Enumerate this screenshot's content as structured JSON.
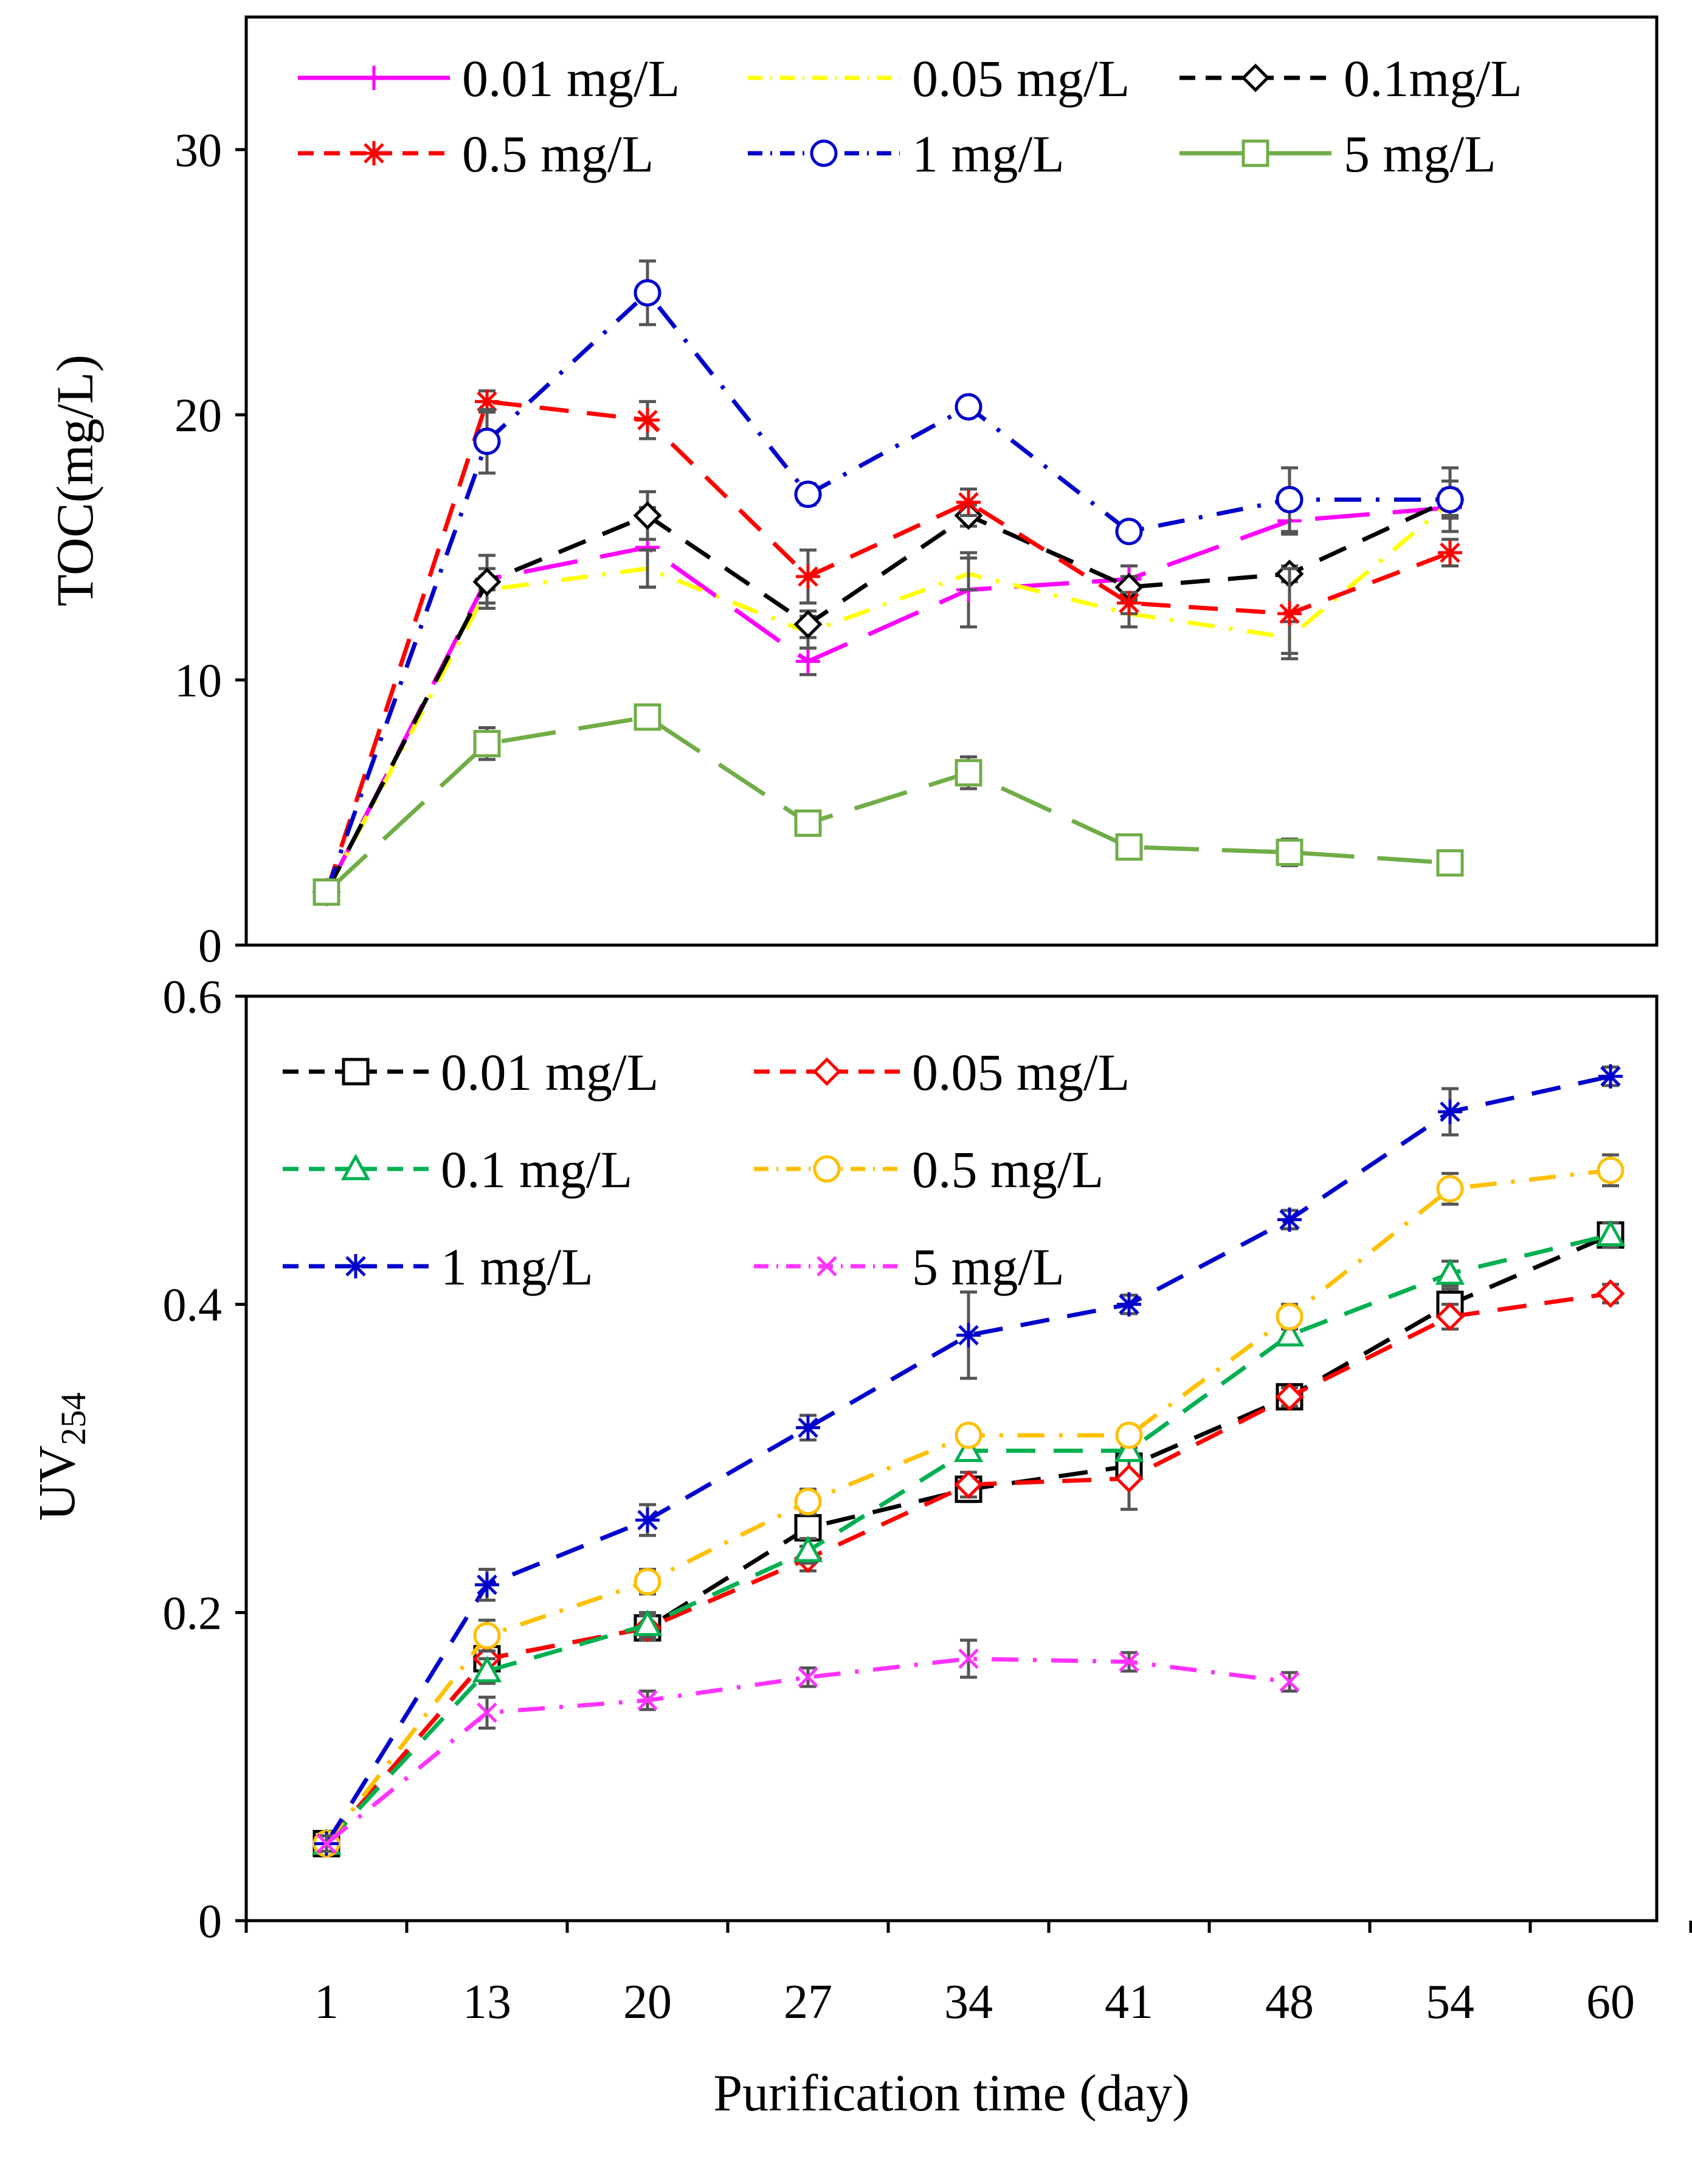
{
  "chart_data": [
    {
      "type": "line",
      "ylabel": "TOC(mg/L)",
      "ylim": [
        0,
        35
      ],
      "yticks": [
        "0",
        "10",
        "20",
        "30"
      ],
      "ytick_values": [
        0,
        10,
        20,
        30
      ],
      "x": [
        "1",
        "13",
        "20",
        "27",
        "34",
        "41",
        "48",
        "54",
        "60"
      ],
      "legend_position": "top",
      "series": [
        {
          "name": "0.01 mg/L",
          "color": "#ff00ff",
          "marker": "plus",
          "dash": "long-dash",
          "values": [
            2.0,
            13.8,
            15.0,
            10.7,
            13.4,
            13.8,
            16.0,
            16.5,
            null
          ],
          "errors": [
            0.2,
            0.4,
            1.5,
            0.5,
            1.4,
            0.5,
            0.5,
            0.4,
            null
          ]
        },
        {
          "name": "0.05 mg/L",
          "color": "#ffff00",
          "marker": "none",
          "dash": "dash-dot",
          "values": [
            2.0,
            13.4,
            14.2,
            11.8,
            14.0,
            12.5,
            11.6,
            16.7,
            null
          ],
          "errors": [
            0.2,
            0.5,
            0.7,
            0.6,
            0.6,
            0.5,
            0.6,
            0.5,
            null
          ]
        },
        {
          "name": "0.1mg/L",
          "color": "#000000",
          "marker": "diamond",
          "dash": "dash",
          "values": [
            2.0,
            13.7,
            16.2,
            12.1,
            16.2,
            13.5,
            14.0,
            16.8,
            null
          ],
          "errors": [
            0.2,
            1.0,
            0.9,
            0.5,
            0.4,
            0.4,
            0.3,
            0.7,
            null
          ]
        },
        {
          "name": "0.5 mg/L",
          "color": "#ff0000",
          "marker": "asterisk",
          "dash": "dash",
          "values": [
            2.0,
            20.5,
            19.8,
            13.9,
            16.7,
            12.9,
            12.5,
            14.8,
            null
          ],
          "errors": [
            0.2,
            0.4,
            0.7,
            1.0,
            0.5,
            0.4,
            1.7,
            0.5,
            null
          ]
        },
        {
          "name": "1 mg/L",
          "color": "#0000cc",
          "marker": "circle",
          "dash": "dash-dot",
          "values": [
            2.0,
            19.0,
            24.6,
            17.0,
            20.3,
            15.6,
            16.8,
            16.8,
            null
          ],
          "errors": [
            0.2,
            1.2,
            1.2,
            0.4,
            0.3,
            0.3,
            1.2,
            1.2,
            null
          ]
        },
        {
          "name": "5 mg/L",
          "color": "#70ad47",
          "marker": "square",
          "dash": "long-dash",
          "values": [
            2.0,
            7.6,
            8.6,
            4.6,
            6.5,
            3.7,
            3.5,
            3.1,
            null
          ],
          "errors": [
            0.2,
            0.6,
            0.3,
            0.3,
            0.6,
            0.3,
            0.5,
            0.3,
            null
          ]
        }
      ]
    },
    {
      "type": "line",
      "ylabel": "UV",
      "ylabel_sub": "254",
      "xlabel": "Purification time (day)",
      "ylim": [
        0,
        0.6
      ],
      "yticks": [
        "0",
        "0.2",
        "0.4",
        "0.6"
      ],
      "ytick_values": [
        0,
        0.2,
        0.4,
        0.6
      ],
      "x": [
        "1",
        "13",
        "20",
        "27",
        "34",
        "41",
        "48",
        "54",
        "60"
      ],
      "legend_position": "top-left",
      "series": [
        {
          "name": "0.01 mg/L",
          "color": "#000000",
          "marker": "square",
          "dash": "dash",
          "values": [
            0.05,
            0.17,
            0.19,
            0.255,
            0.28,
            0.295,
            0.34,
            0.4,
            0.445
          ],
          "errors": [
            0.005,
            0.008,
            0.008,
            0.008,
            0.008,
            0.008,
            0.006,
            0.01,
            0.008
          ]
        },
        {
          "name": "0.05 mg/L",
          "color": "#ff0000",
          "marker": "diamond",
          "dash": "dash",
          "values": [
            0.05,
            0.17,
            0.19,
            0.235,
            0.283,
            0.287,
            0.34,
            0.392,
            0.407
          ],
          "errors": [
            0.005,
            0.008,
            0.008,
            0.008,
            0.008,
            0.02,
            0.006,
            0.008,
            0.006
          ]
        },
        {
          "name": "0.1 mg/L",
          "color": "#00b050",
          "marker": "triangle",
          "dash": "dash",
          "values": [
            0.05,
            0.162,
            0.192,
            0.24,
            0.305,
            0.305,
            0.38,
            0.42,
            0.445
          ],
          "errors": [
            0.005,
            0.008,
            0.008,
            0.008,
            0.006,
            0.006,
            0.006,
            0.008,
            0.008
          ]
        },
        {
          "name": "0.5 mg/L",
          "color": "#ffc000",
          "marker": "circle",
          "dash": "dash-dot",
          "values": [
            0.05,
            0.185,
            0.22,
            0.272,
            0.315,
            0.315,
            0.392,
            0.475,
            0.487
          ],
          "errors": [
            0.005,
            0.01,
            0.008,
            0.008,
            0.006,
            0.006,
            0.008,
            0.01,
            0.01
          ]
        },
        {
          "name": "1 mg/L",
          "color": "#0000cc",
          "marker": "asterisk",
          "dash": "dash",
          "values": [
            0.05,
            0.218,
            0.26,
            0.32,
            0.38,
            0.4,
            0.455,
            0.525,
            0.548
          ],
          "errors": [
            0.005,
            0.01,
            0.01,
            0.008,
            0.028,
            0.006,
            0.006,
            0.015,
            0.006
          ]
        },
        {
          "name": "5 mg/L",
          "color": "#ff33ff",
          "marker": "x",
          "dash": "dash-dot",
          "values": [
            0.05,
            0.135,
            0.143,
            0.158,
            0.17,
            0.168,
            0.155,
            null,
            null
          ],
          "errors": [
            0.005,
            0.01,
            0.006,
            0.006,
            0.012,
            0.006,
            0.006,
            null,
            null
          ]
        }
      ]
    }
  ]
}
